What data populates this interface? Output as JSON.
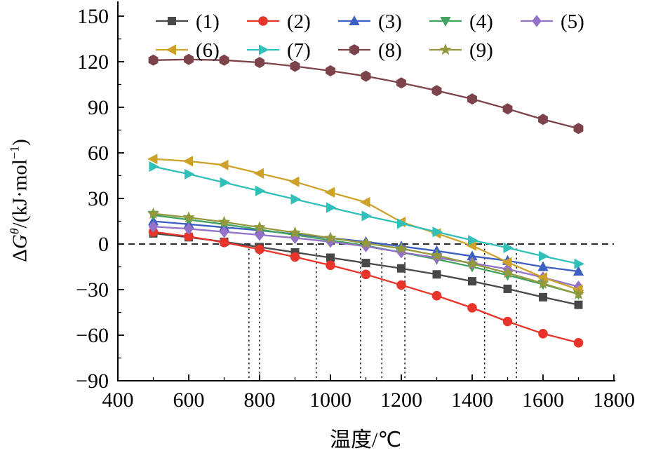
{
  "chart_data": {
    "type": "line",
    "title": "",
    "xlabel": "温度/℃",
    "ylabel": "ΔGθ/(kJ·mol−1)",
    "ylabel_parts": {
      "delta": "Δ",
      "g": "G",
      "sup": "θ",
      "mid": "/(kJ·mol",
      "sup2": "−1",
      "close": ")"
    },
    "xlim": [
      400,
      1800
    ],
    "ylim": [
      -90,
      150
    ],
    "xticks": [
      400,
      600,
      800,
      1000,
      1200,
      1400,
      1600,
      1800
    ],
    "xtick_labels": [
      "400",
      "600",
      "800",
      "1000",
      "1200",
      "1400",
      "1600",
      "1800"
    ],
    "yticks": [
      -90,
      -60,
      -30,
      0,
      30,
      60,
      90,
      120,
      150
    ],
    "ytick_labels": [
      "−90",
      "−60",
      "−30",
      "0",
      "30",
      "60",
      "90",
      "120",
      "150"
    ],
    "x_minor_step": 100,
    "y_minor_step": 15,
    "grid": false,
    "legend_position": "top-inside",
    "x": [
      500,
      600,
      700,
      800,
      900,
      1000,
      1100,
      1200,
      1300,
      1400,
      1500,
      1600,
      1700
    ],
    "series": [
      {
        "name": "(1)",
        "marker": "square",
        "color": "#484848",
        "values": [
          7,
          4.5,
          1.5,
          -2,
          -5.5,
          -9,
          -12.5,
          -16,
          -20,
          -24.5,
          -29.5,
          -35,
          -40
        ]
      },
      {
        "name": "(2)",
        "marker": "circle",
        "color": "#e8352b",
        "values": [
          8,
          5,
          1,
          -3.5,
          -8.5,
          -14,
          -20,
          -27,
          -34,
          -42,
          -51,
          -59,
          -65
        ]
      },
      {
        "name": "(3)",
        "marker": "triangle-up",
        "color": "#3d5fc4",
        "values": [
          15,
          13,
          11,
          9,
          6.5,
          4,
          1.5,
          -1.5,
          -4.5,
          -8,
          -11,
          -15,
          -18
        ]
      },
      {
        "name": "(4)",
        "marker": "triangle-down",
        "color": "#41a35f",
        "values": [
          19,
          16,
          13,
          9.5,
          6,
          2.5,
          -1,
          -5.5,
          -10,
          -15,
          -20.5,
          -26.5,
          -33
        ]
      },
      {
        "name": "(5)",
        "marker": "diamond",
        "color": "#9372c8",
        "values": [
          11.5,
          10,
          8,
          6,
          4,
          1.5,
          -1.5,
          -5.5,
          -9,
          -12.5,
          -16.5,
          -22,
          -28
        ]
      },
      {
        "name": "(6)",
        "marker": "triangle-left",
        "color": "#cea22a",
        "values": [
          56,
          54.5,
          52,
          46.5,
          41,
          34,
          27.5,
          14.5,
          7,
          -1,
          -12,
          -22,
          -30
        ]
      },
      {
        "name": "(7)",
        "marker": "triangle-right",
        "color": "#31bfba",
        "values": [
          51,
          46,
          40.5,
          35,
          29.5,
          24,
          18.5,
          13.5,
          8,
          2.5,
          -2.5,
          -8,
          -13
        ]
      },
      {
        "name": "(8)",
        "marker": "hexagon",
        "color": "#7c434b",
        "values": [
          121,
          121.5,
          121,
          119.5,
          117,
          114,
          110.5,
          106,
          101,
          95.5,
          89,
          82,
          76
        ]
      },
      {
        "name": "(9)",
        "marker": "star",
        "color": "#94993d",
        "values": [
          20,
          17.5,
          14.5,
          11,
          7.5,
          4,
          0.5,
          -3,
          -7.5,
          -13,
          -19,
          -26,
          -33
        ]
      }
    ],
    "reference_lines": {
      "dashed_horizontal_y": 0,
      "vertical_dotted_x": [
        770,
        800,
        960,
        1085,
        1145,
        1210,
        1435,
        1525
      ]
    },
    "legend": {
      "rows": [
        [
          "(1)",
          "(2)",
          "(3)",
          "(4)",
          "(5)"
        ],
        [
          "(6)",
          "(7)",
          "(8)",
          "(9)"
        ]
      ]
    }
  }
}
